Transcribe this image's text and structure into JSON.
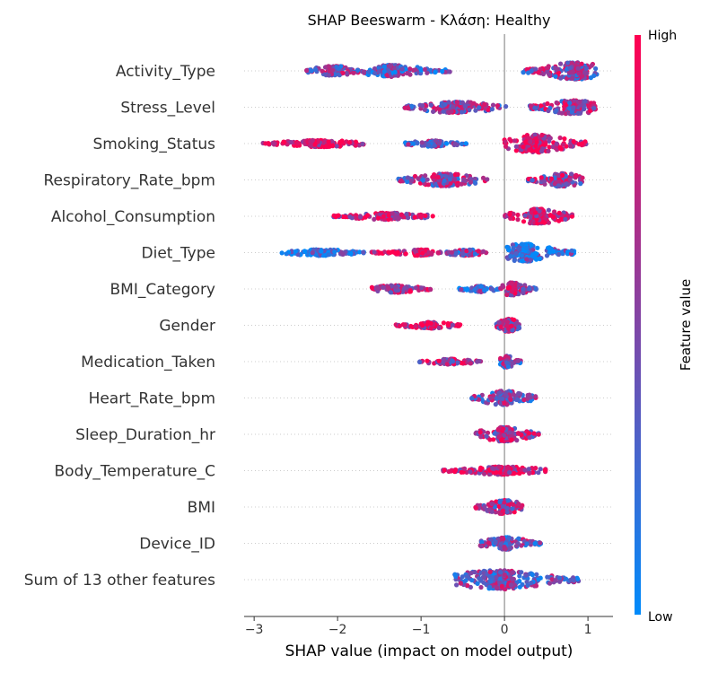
{
  "chart_data": {
    "type": "scatter",
    "title": "SHAP Beeswarm - Κλάση: Healthy",
    "xlabel": "SHAP value (impact on model output)",
    "xlim": [
      -3.12,
      1.3
    ],
    "x_ticks": [
      -3,
      -2,
      -1,
      0,
      1
    ],
    "x_tick_labels": [
      "−3",
      "−2",
      "−1",
      "0",
      "1"
    ],
    "colorbar": {
      "title": "Feature value",
      "high_label": "High",
      "low_label": "Low",
      "high_color": "#ff0051",
      "low_color": "#008bfb"
    },
    "zero_line": 0,
    "features": [
      {
        "name": "Activity_Type",
        "clusters": [
          {
            "center": -2.05,
            "min": -2.38,
            "max": -1.7,
            "width": 3.2,
            "mix": 0.55
          },
          {
            "center": -1.38,
            "min": -1.7,
            "max": -0.65,
            "width": 3.8,
            "mix": 0.35
          },
          {
            "center": 0.85,
            "min": 0.2,
            "max": 1.12,
            "width": 5.5,
            "mix": 0.55
          }
        ]
      },
      {
        "name": "Stress_Level",
        "clusters": [
          {
            "center": -0.6,
            "min": -1.2,
            "max": 0.02,
            "width": 3.6,
            "mix": 0.55
          },
          {
            "center": 0.82,
            "min": 0.3,
            "max": 1.12,
            "width": 4.5,
            "mix": 0.6
          }
        ]
      },
      {
        "name": "Smoking_Status",
        "clusters": [
          {
            "center": -2.2,
            "min": -2.9,
            "max": -1.68,
            "width": 2.2,
            "mix": 0.9
          },
          {
            "center": -0.85,
            "min": -1.2,
            "max": -0.45,
            "width": 2.0,
            "mix": 0.4
          },
          {
            "center": 0.38,
            "min": 0.0,
            "max": 0.98,
            "width": 5.8,
            "mix": 0.85
          }
        ]
      },
      {
        "name": "Respiratory_Rate_bpm",
        "clusters": [
          {
            "center": -0.72,
            "min": -1.28,
            "max": -0.2,
            "width": 4.0,
            "mix": 0.55
          },
          {
            "center": 0.68,
            "min": 0.28,
            "max": 0.95,
            "width": 4.3,
            "mix": 0.62
          }
        ]
      },
      {
        "name": "Alcohol_Consumption",
        "clusters": [
          {
            "center": -1.4,
            "min": -2.05,
            "max": -0.85,
            "width": 2.2,
            "mix": 0.8
          },
          {
            "center": 0.4,
            "min": 0.0,
            "max": 0.82,
            "width": 4.8,
            "mix": 0.82
          }
        ]
      },
      {
        "name": "Diet_Type",
        "clusters": [
          {
            "center": -2.2,
            "min": -2.68,
            "max": -1.68,
            "width": 2.0,
            "mix": 0.1
          },
          {
            "center": -1.0,
            "min": -1.6,
            "max": -0.85,
            "width": 2.0,
            "mix": 0.9
          },
          {
            "center": -0.45,
            "min": -0.8,
            "max": -0.2,
            "width": 2.0,
            "mix": 0.5
          },
          {
            "center": 0.25,
            "min": 0.0,
            "max": 0.85,
            "width": 5.8,
            "mix": 0.22
          }
        ]
      },
      {
        "name": "BMI_Category",
        "clusters": [
          {
            "center": -1.3,
            "min": -1.6,
            "max": -0.88,
            "width": 2.4,
            "mix": 0.72
          },
          {
            "center": -0.3,
            "min": -0.55,
            "max": -0.05,
            "width": 2.0,
            "mix": 0.25
          },
          {
            "center": 0.1,
            "min": -0.05,
            "max": 0.38,
            "width": 4.2,
            "mix": 0.6
          }
        ]
      },
      {
        "name": "Gender",
        "clusters": [
          {
            "center": -0.9,
            "min": -1.3,
            "max": -0.52,
            "width": 2.0,
            "mix": 0.8
          },
          {
            "center": 0.05,
            "min": -0.1,
            "max": 0.22,
            "width": 4.2,
            "mix": 0.65
          }
        ]
      },
      {
        "name": "Medication_Taken",
        "clusters": [
          {
            "center": -0.65,
            "min": -1.02,
            "max": -0.28,
            "width": 1.8,
            "mix": 0.65
          },
          {
            "center": 0.02,
            "min": -0.05,
            "max": 0.2,
            "width": 3.8,
            "mix": 0.5
          }
        ]
      },
      {
        "name": "Heart_Rate_bpm",
        "clusters": [
          {
            "center": 0.0,
            "min": -0.4,
            "max": 0.38,
            "width": 4.6,
            "mix": 0.5
          }
        ]
      },
      {
        "name": "Sleep_Duration_hr",
        "clusters": [
          {
            "center": 0.0,
            "min": -0.35,
            "max": 0.42,
            "width": 4.6,
            "mix": 0.65
          }
        ]
      },
      {
        "name": "Body_Temperature_C",
        "clusters": [
          {
            "center": 0.0,
            "min": -0.75,
            "max": 0.5,
            "width": 2.6,
            "mix": 0.85
          }
        ]
      },
      {
        "name": "BMI",
        "clusters": [
          {
            "center": 0.0,
            "min": -0.35,
            "max": 0.22,
            "width": 4.6,
            "mix": 0.6
          }
        ]
      },
      {
        "name": "Device_ID",
        "clusters": [
          {
            "center": 0.0,
            "min": -0.32,
            "max": 0.45,
            "width": 4.0,
            "mix": 0.45
          }
        ]
      },
      {
        "name": "Sum of 13 other features",
        "clusters": [
          {
            "center": -0.05,
            "min": -0.62,
            "max": 0.9,
            "width": 6.2,
            "mix": 0.45
          }
        ]
      }
    ]
  }
}
